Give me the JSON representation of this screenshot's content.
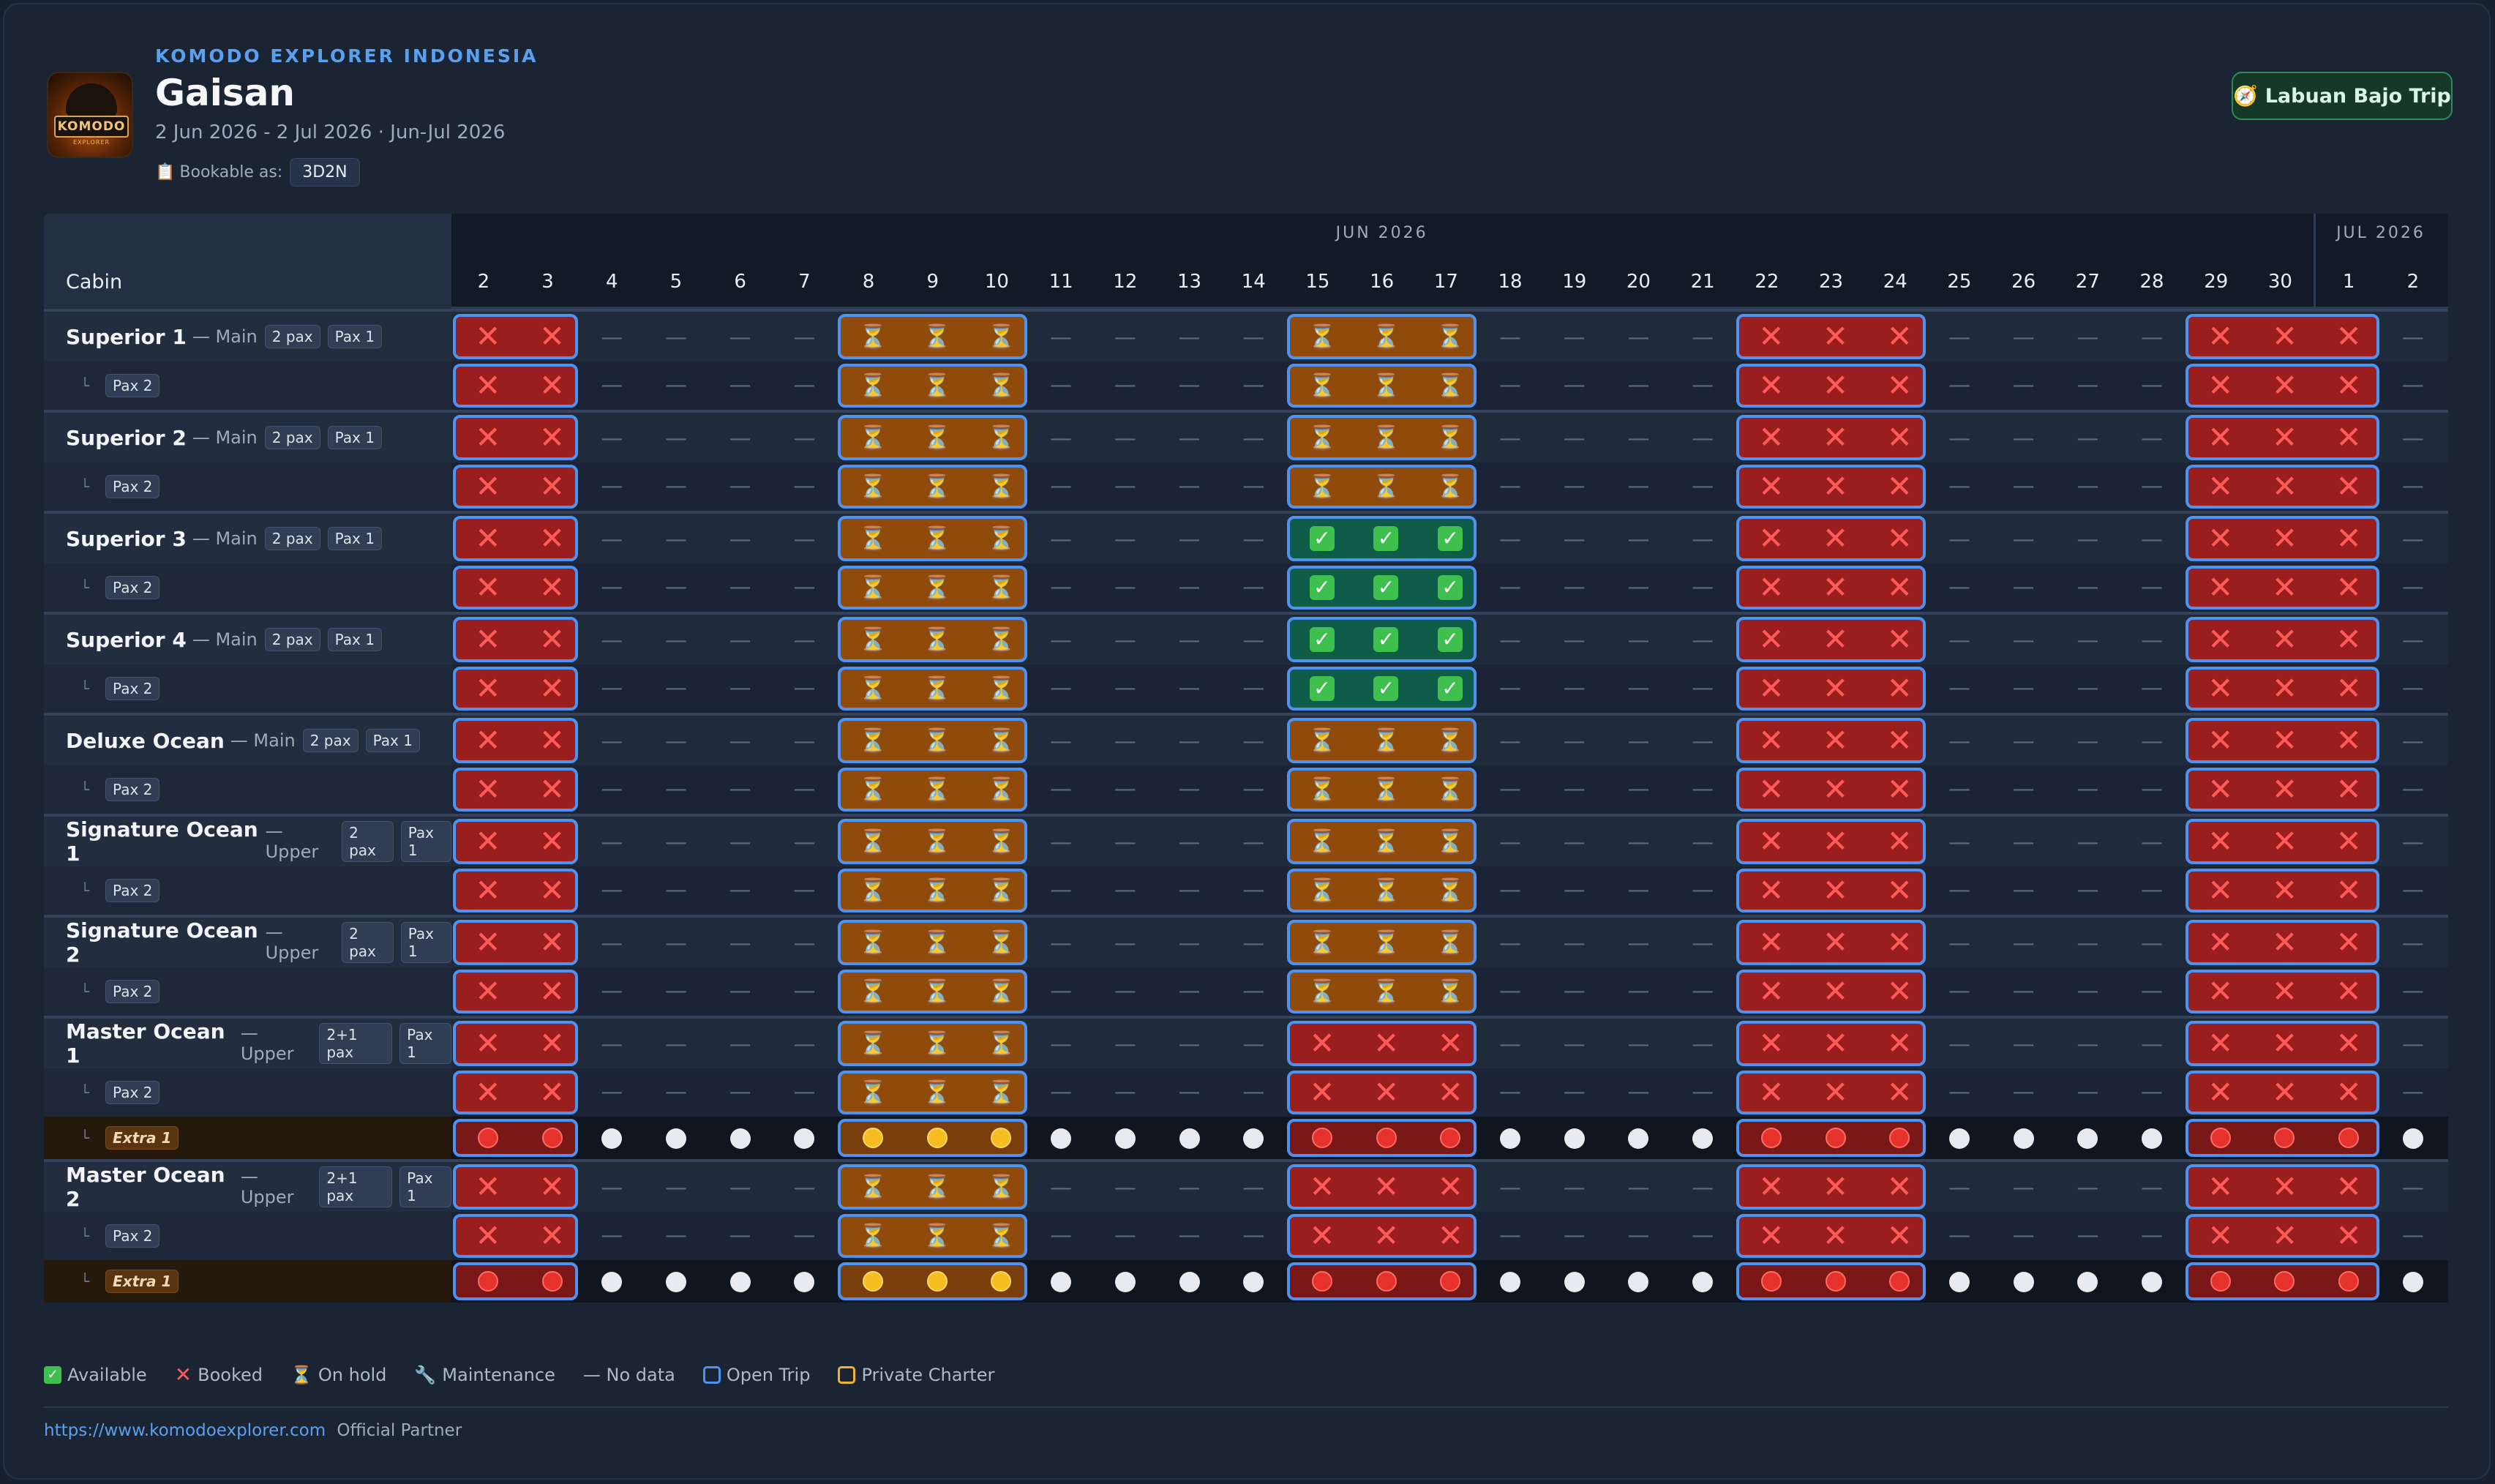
{
  "brand": "KOMODO EXPLORER INDONESIA",
  "title": "Gaisan",
  "subtitle": "2 Jun 2026 - 2 Jul 2026 · Jun-Jul 2026",
  "bookable_label": "Bookable as:",
  "bookable_value": "3D2N",
  "trip_button": "Labuan Bajo Trip",
  "logo_text": "KOMODO",
  "logo_sub": "EXPLORER",
  "months": [
    {
      "label": "JUN 2026",
      "from": 0,
      "to": 28
    },
    {
      "label": "JUL 2026",
      "from": 29,
      "to": 30
    }
  ],
  "cabin_header": "Cabin",
  "days": [
    "2",
    "3",
    "4",
    "5",
    "6",
    "7",
    "8",
    "9",
    "10",
    "11",
    "12",
    "13",
    "14",
    "15",
    "16",
    "17",
    "18",
    "19",
    "20",
    "21",
    "22",
    "23",
    "24",
    "25",
    "26",
    "27",
    "28",
    "29",
    "30",
    "1",
    "2"
  ],
  "sub_label_pax2": "Pax 2",
  "sub_label_extra": "Extra 1",
  "cabins": [
    {
      "name": "Superior 1",
      "deck": "— Main",
      "pax": "2 pax",
      "tag": "Pax 1",
      "extra": false,
      "blocks": [
        [
          "booked",
          0,
          1
        ],
        [
          "hold",
          6,
          8
        ],
        [
          "hold",
          13,
          15
        ],
        [
          "booked",
          20,
          22
        ],
        [
          "booked",
          27,
          29
        ]
      ]
    },
    {
      "name": "Superior 2",
      "deck": "— Main",
      "pax": "2 pax",
      "tag": "Pax 1",
      "extra": false,
      "blocks": [
        [
          "booked",
          0,
          1
        ],
        [
          "hold",
          6,
          8
        ],
        [
          "hold",
          13,
          15
        ],
        [
          "booked",
          20,
          22
        ],
        [
          "booked",
          27,
          29
        ]
      ]
    },
    {
      "name": "Superior 3",
      "deck": "— Main",
      "pax": "2 pax",
      "tag": "Pax 1",
      "extra": false,
      "blocks": [
        [
          "booked",
          0,
          1
        ],
        [
          "hold",
          6,
          8
        ],
        [
          "avail",
          13,
          15
        ],
        [
          "booked",
          20,
          22
        ],
        [
          "booked",
          27,
          29
        ]
      ]
    },
    {
      "name": "Superior 4",
      "deck": "— Main",
      "pax": "2 pax",
      "tag": "Pax 1",
      "extra": false,
      "blocks": [
        [
          "booked",
          0,
          1
        ],
        [
          "hold",
          6,
          8
        ],
        [
          "avail",
          13,
          15
        ],
        [
          "booked",
          20,
          22
        ],
        [
          "booked",
          27,
          29
        ]
      ]
    },
    {
      "name": "Deluxe Ocean",
      "deck": "— Main",
      "pax": "2 pax",
      "tag": "Pax 1",
      "extra": false,
      "blocks": [
        [
          "booked",
          0,
          1
        ],
        [
          "hold",
          6,
          8
        ],
        [
          "hold",
          13,
          15
        ],
        [
          "booked",
          20,
          22
        ],
        [
          "booked",
          27,
          29
        ]
      ]
    },
    {
      "name": "Signature Ocean 1",
      "deck": "— Upper",
      "pax": "2 pax",
      "tag": "Pax 1",
      "extra": false,
      "blocks": [
        [
          "booked",
          0,
          1
        ],
        [
          "hold",
          6,
          8
        ],
        [
          "hold",
          13,
          15
        ],
        [
          "booked",
          20,
          22
        ],
        [
          "booked",
          27,
          29
        ]
      ]
    },
    {
      "name": "Signature Ocean 2",
      "deck": "— Upper",
      "pax": "2 pax",
      "tag": "Pax 1",
      "extra": false,
      "blocks": [
        [
          "booked",
          0,
          1
        ],
        [
          "hold",
          6,
          8
        ],
        [
          "hold",
          13,
          15
        ],
        [
          "booked",
          20,
          22
        ],
        [
          "booked",
          27,
          29
        ]
      ]
    },
    {
      "name": "Master Ocean 1",
      "deck": "— Upper",
      "pax": "2+1 pax",
      "tag": "Pax 1",
      "extra": true,
      "blocks": [
        [
          "booked",
          0,
          1
        ],
        [
          "hold",
          6,
          8
        ],
        [
          "booked",
          13,
          15
        ],
        [
          "booked",
          20,
          22
        ],
        [
          "booked",
          27,
          29
        ]
      ]
    },
    {
      "name": "Master Ocean 2",
      "deck": "— Upper",
      "pax": "2+1 pax",
      "tag": "Pax 1",
      "extra": true,
      "blocks": [
        [
          "booked",
          0,
          1
        ],
        [
          "hold",
          6,
          8
        ],
        [
          "booked",
          13,
          15
        ],
        [
          "booked",
          20,
          22
        ],
        [
          "booked",
          27,
          29
        ]
      ]
    }
  ],
  "legend": {
    "available": "Available",
    "booked": "Booked",
    "on_hold": "On hold",
    "maintenance": "Maintenance",
    "no_data": "— No data",
    "open_trip": "Open Trip",
    "private_charter": "Private Charter"
  },
  "colors": {
    "open_trip": "#4f93f0",
    "private_charter": "#f0b429",
    "booked": "#9b1e1e",
    "hold": "#8f4a0c",
    "available": "#0f5c49"
  },
  "footer_link": "https://www.komodoexplorer.com",
  "footer_text": "Official Partner"
}
